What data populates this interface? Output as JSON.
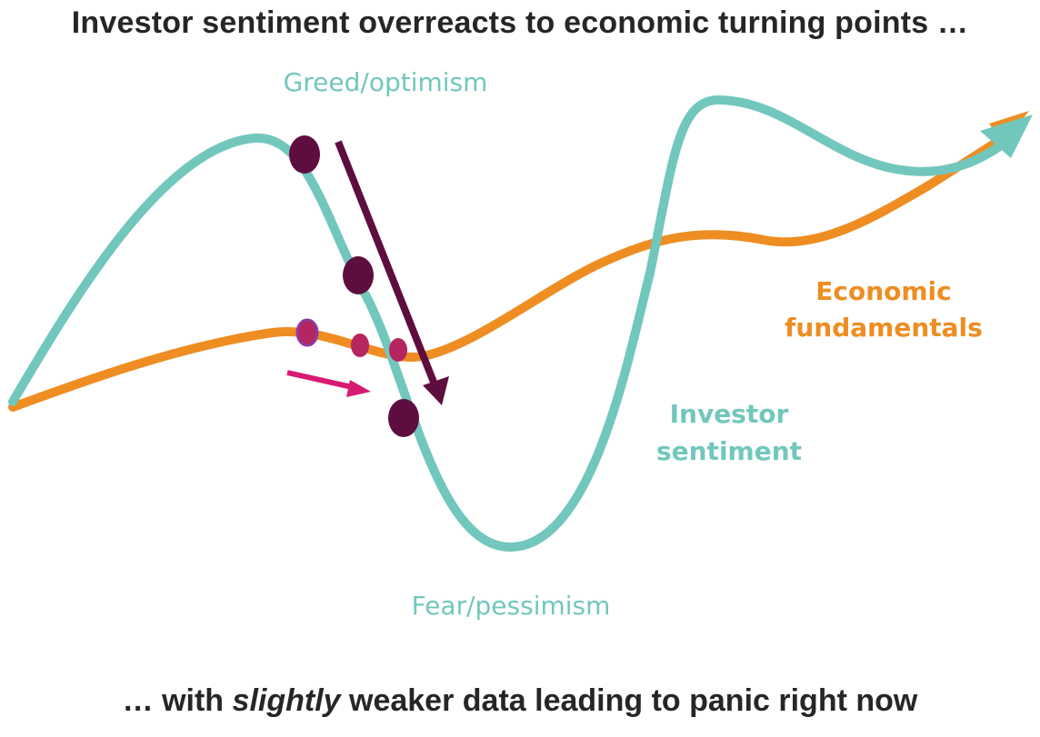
{
  "title": "Investor sentiment overreacts to economic turning points …",
  "footer": {
    "prefix": "… with ",
    "emphasis": "slightly",
    "suffix": " weaker data leading to panic right now"
  },
  "labels": {
    "greed": "Greed/optimism",
    "fear": "Fear/pessimism",
    "economic_line1": "Economic",
    "economic_line2": "fundamentals",
    "investor_line1": "Investor",
    "investor_line2": "sentiment"
  },
  "colors": {
    "sentiment": "#72c7bd",
    "fundamentals": "#ee8d22",
    "dot_dark": "#5e0d3f",
    "dot_pink": "#b5255f",
    "arrow_dark": "#5e0d3f",
    "arrow_pink": "#d81b72",
    "text": "#262626"
  }
}
